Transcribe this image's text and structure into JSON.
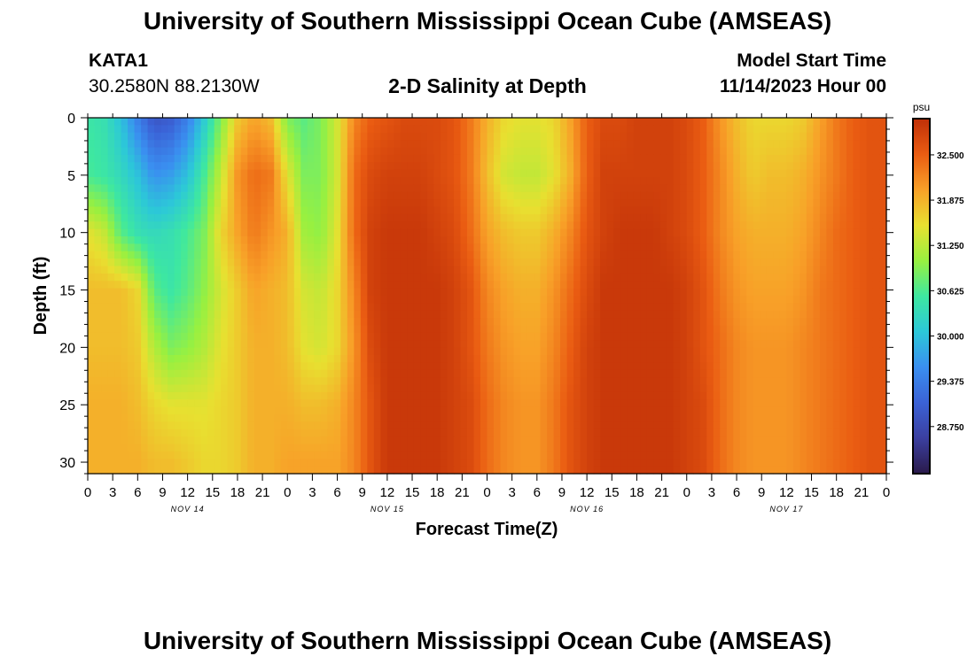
{
  "page": {
    "main_title": "University of Southern Mississippi Ocean Cube (AMSEAS)",
    "footer_title": "University of Southern Mississippi Ocean Cube (AMSEAS)"
  },
  "station": {
    "id": "KATA1",
    "coords": "30.2580N  88.2130W"
  },
  "model": {
    "start_label": "Model Start Time",
    "start_value": "11/14/2023 Hour 00"
  },
  "chart_data": {
    "type": "heatmap",
    "title": "2-D Salinity at Depth",
    "xlabel": "Forecast Time(Z)",
    "ylabel": "Depth (ft)",
    "xlim": [
      0,
      96
    ],
    "ylim": [
      0,
      31
    ],
    "x_ticks": [
      0,
      3,
      6,
      9,
      12,
      15,
      18,
      21,
      24,
      27,
      30,
      33,
      36,
      39,
      42,
      45,
      48,
      51,
      54,
      57,
      60,
      63,
      66,
      69,
      72,
      75,
      78,
      81,
      84,
      87,
      90,
      93,
      96
    ],
    "x_tick_labels": [
      "0",
      "3",
      "6",
      "9",
      "12",
      "15",
      "18",
      "21",
      "0",
      "3",
      "6",
      "9",
      "12",
      "15",
      "18",
      "21",
      "0",
      "3",
      "6",
      "9",
      "12",
      "15",
      "18",
      "21",
      "0",
      "3",
      "6",
      "9",
      "12",
      "15",
      "18",
      "21",
      "0"
    ],
    "date_labels": [
      {
        "hour": 12,
        "label": "NOV 14"
      },
      {
        "hour": 36,
        "label": "NOV 15"
      },
      {
        "hour": 60,
        "label": "NOV 16"
      },
      {
        "hour": 84,
        "label": "NOV 17"
      }
    ],
    "y_ticks": [
      0,
      5,
      10,
      15,
      20,
      25,
      30
    ],
    "y_tick_labels": [
      "0",
      "5",
      "10",
      "15",
      "20",
      "25",
      "30"
    ],
    "colorbar": {
      "unit": "psu",
      "min": 28.1,
      "max": 33.0,
      "tick_values": [
        28.75,
        29.375,
        30.0,
        30.625,
        31.25,
        31.875,
        32.5
      ],
      "tick_labels": [
        "28.750",
        "29.375",
        "30.000",
        "30.625",
        "31.250",
        "31.875",
        "32.500"
      ],
      "colors": [
        "#2a1a4a",
        "#3b3fa0",
        "#3b62d6",
        "#3a8ff0",
        "#2cc8d8",
        "#3ee8a0",
        "#98f040",
        "#e8e030",
        "#f8a028",
        "#ea5c12",
        "#c03008"
      ]
    },
    "hours": [
      0,
      2,
      4,
      6,
      8,
      10,
      12,
      14,
      16,
      18,
      20,
      22,
      24,
      26,
      28,
      30,
      32,
      34,
      36,
      38,
      40,
      42,
      44,
      46,
      48,
      50,
      52,
      54,
      56,
      58,
      60,
      62,
      64,
      66,
      68,
      70,
      72,
      74,
      76,
      78,
      80,
      82,
      84,
      86,
      88,
      90,
      92,
      94,
      96
    ],
    "depths": [
      0,
      5,
      10,
      15,
      20,
      25,
      30
    ],
    "salinity": [
      [
        30.5,
        30.4,
        30.0,
        29.4,
        28.9,
        29.0,
        29.4,
        30.1,
        30.9,
        31.7,
        32.0,
        31.8,
        30.9,
        30.7,
        30.9,
        31.4,
        32.2,
        32.5,
        32.6,
        32.7,
        32.7,
        32.7,
        32.6,
        32.3,
        31.9,
        31.6,
        31.5,
        31.5,
        31.6,
        32.0,
        32.5,
        32.7,
        32.7,
        32.8,
        32.8,
        32.8,
        32.7,
        32.5,
        32.1,
        31.8,
        31.6,
        31.6,
        31.6,
        31.7,
        32.0,
        32.3,
        32.5,
        32.6,
        32.6
      ],
      [
        30.6,
        30.5,
        30.3,
        30.0,
        29.6,
        29.7,
        30.0,
        30.6,
        31.3,
        32.1,
        32.4,
        32.3,
        31.5,
        30.9,
        30.9,
        31.4,
        32.4,
        32.7,
        32.8,
        32.8,
        32.8,
        32.7,
        32.6,
        32.3,
        31.8,
        31.4,
        31.3,
        31.3,
        31.5,
        31.9,
        32.5,
        32.8,
        32.8,
        32.8,
        32.8,
        32.8,
        32.7,
        32.5,
        32.2,
        31.9,
        31.7,
        31.8,
        31.8,
        31.9,
        32.1,
        32.3,
        32.5,
        32.6,
        32.6
      ],
      [
        31.5,
        31.3,
        30.7,
        30.4,
        30.3,
        30.4,
        30.6,
        30.9,
        31.6,
        32.0,
        32.3,
        32.1,
        31.9,
        31.1,
        31.0,
        31.5,
        32.4,
        32.8,
        32.9,
        32.9,
        32.9,
        32.8,
        32.7,
        32.4,
        32.0,
        31.8,
        31.7,
        31.7,
        31.9,
        32.2,
        32.6,
        32.8,
        32.9,
        32.9,
        32.9,
        32.8,
        32.7,
        32.5,
        32.2,
        32.0,
        31.9,
        31.9,
        31.9,
        32.0,
        32.2,
        32.4,
        32.5,
        32.6,
        32.6
      ],
      [
        31.8,
        31.8,
        31.8,
        31.6,
        30.7,
        30.5,
        30.7,
        31.0,
        31.4,
        31.7,
        32.0,
        31.9,
        31.8,
        31.4,
        31.3,
        31.6,
        32.2,
        32.8,
        32.9,
        32.9,
        32.9,
        32.9,
        32.8,
        32.6,
        32.2,
        32.0,
        31.9,
        31.9,
        32.1,
        32.4,
        32.7,
        32.9,
        32.9,
        32.9,
        32.9,
        32.9,
        32.8,
        32.6,
        32.3,
        32.1,
        32.0,
        32.0,
        32.0,
        32.1,
        32.3,
        32.4,
        32.5,
        32.6,
        32.6
      ],
      [
        31.8,
        31.8,
        31.8,
        31.7,
        31.2,
        30.9,
        31.0,
        31.2,
        31.5,
        31.7,
        31.9,
        31.9,
        31.8,
        31.5,
        31.4,
        31.6,
        32.1,
        32.7,
        32.9,
        32.9,
        32.9,
        32.9,
        32.8,
        32.6,
        32.3,
        32.1,
        32.0,
        32.0,
        32.2,
        32.5,
        32.8,
        32.9,
        32.9,
        32.9,
        32.9,
        32.9,
        32.8,
        32.6,
        32.4,
        32.2,
        32.1,
        32.1,
        32.1,
        32.2,
        32.3,
        32.4,
        32.5,
        32.6,
        32.6
      ],
      [
        31.9,
        31.9,
        31.9,
        31.8,
        31.6,
        31.5,
        31.5,
        31.5,
        31.6,
        31.7,
        31.9,
        31.9,
        31.9,
        31.8,
        31.8,
        31.9,
        32.2,
        32.6,
        32.9,
        32.9,
        32.9,
        32.9,
        32.8,
        32.7,
        32.4,
        32.2,
        32.1,
        32.1,
        32.3,
        32.6,
        32.8,
        32.9,
        32.9,
        32.9,
        32.9,
        32.9,
        32.8,
        32.7,
        32.4,
        32.2,
        32.1,
        32.1,
        32.1,
        32.2,
        32.3,
        32.4,
        32.5,
        32.6,
        32.6
      ],
      [
        31.9,
        31.9,
        31.9,
        31.9,
        31.8,
        31.8,
        31.7,
        31.6,
        31.6,
        31.7,
        31.9,
        31.9,
        32.0,
        32.0,
        32.0,
        32.0,
        32.2,
        32.6,
        32.9,
        32.9,
        32.9,
        32.9,
        32.8,
        32.7,
        32.4,
        32.2,
        32.1,
        32.1,
        32.3,
        32.6,
        32.8,
        32.9,
        32.9,
        32.9,
        32.9,
        32.9,
        32.8,
        32.7,
        32.4,
        32.2,
        32.1,
        32.1,
        32.1,
        32.2,
        32.3,
        32.4,
        32.5,
        32.6,
        32.6
      ]
    ]
  }
}
